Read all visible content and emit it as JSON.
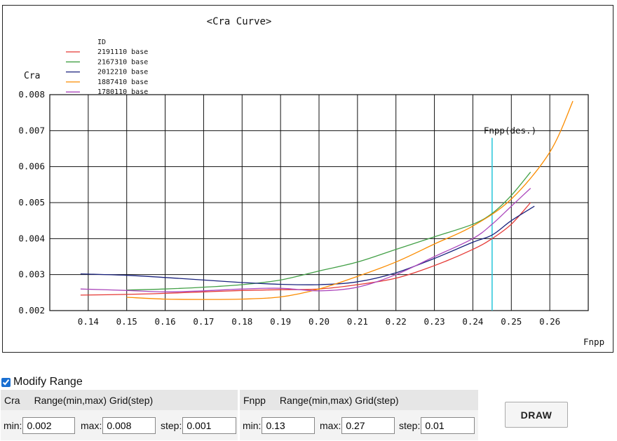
{
  "chart_data": {
    "type": "line",
    "title": "<Cra Curve>",
    "ylabel": "Cra",
    "xlabel": "Fnpp",
    "xlim": [
      0.13,
      0.27
    ],
    "ylim": [
      0.002,
      0.008
    ],
    "grid": true,
    "x_ticks": [
      "0.14",
      "0.15",
      "0.16",
      "0.17",
      "0.18",
      "0.19",
      "0.20",
      "0.21",
      "0.22",
      "0.23",
      "0.24",
      "0.25",
      "0.26"
    ],
    "y_ticks": [
      "0.002",
      "0.003",
      "0.004",
      "0.005",
      "0.006",
      "0.007",
      "0.008"
    ],
    "legend_title": "ID",
    "legend_position": "top-left",
    "series": [
      {
        "name": "2191110 base",
        "color": "#e53935",
        "points": [
          [
            0.138,
            0.00243
          ],
          [
            0.15,
            0.00245
          ],
          [
            0.16,
            0.00248
          ],
          [
            0.17,
            0.00252
          ],
          [
            0.18,
            0.00256
          ],
          [
            0.19,
            0.00258
          ],
          [
            0.2,
            0.0026
          ],
          [
            0.21,
            0.00272
          ],
          [
            0.22,
            0.0029
          ],
          [
            0.23,
            0.00325
          ],
          [
            0.24,
            0.0037
          ],
          [
            0.245,
            0.004
          ],
          [
            0.25,
            0.0044
          ],
          [
            0.255,
            0.005
          ]
        ]
      },
      {
        "name": "2167310 base",
        "color": "#43a047",
        "points": [
          [
            0.15,
            0.00257
          ],
          [
            0.16,
            0.0026
          ],
          [
            0.17,
            0.00265
          ],
          [
            0.18,
            0.00272
          ],
          [
            0.19,
            0.00285
          ],
          [
            0.2,
            0.0031
          ],
          [
            0.21,
            0.00335
          ],
          [
            0.22,
            0.0037
          ],
          [
            0.23,
            0.00405
          ],
          [
            0.24,
            0.0044
          ],
          [
            0.245,
            0.0047
          ],
          [
            0.25,
            0.0052
          ],
          [
            0.255,
            0.00585
          ]
        ]
      },
      {
        "name": "2012210 base",
        "color": "#1a237e",
        "points": [
          [
            0.138,
            0.00302
          ],
          [
            0.15,
            0.00298
          ],
          [
            0.16,
            0.00292
          ],
          [
            0.17,
            0.00285
          ],
          [
            0.18,
            0.00278
          ],
          [
            0.19,
            0.00273
          ],
          [
            0.2,
            0.00272
          ],
          [
            0.21,
            0.0028
          ],
          [
            0.22,
            0.00305
          ],
          [
            0.23,
            0.00345
          ],
          [
            0.24,
            0.0039
          ],
          [
            0.245,
            0.0041
          ],
          [
            0.25,
            0.0045
          ],
          [
            0.256,
            0.0049
          ]
        ]
      },
      {
        "name": "1887410 base",
        "color": "#fb8c00",
        "points": [
          [
            0.15,
            0.00237
          ],
          [
            0.16,
            0.00232
          ],
          [
            0.17,
            0.00231
          ],
          [
            0.18,
            0.00232
          ],
          [
            0.19,
            0.00238
          ],
          [
            0.2,
            0.0026
          ],
          [
            0.21,
            0.00295
          ],
          [
            0.22,
            0.00335
          ],
          [
            0.23,
            0.00385
          ],
          [
            0.24,
            0.00435
          ],
          [
            0.25,
            0.0051
          ],
          [
            0.26,
            0.0064
          ],
          [
            0.266,
            0.00782
          ]
        ]
      },
      {
        "name": "1780110 base",
        "color": "#ab47bc",
        "points": [
          [
            0.138,
            0.0026
          ],
          [
            0.15,
            0.00256
          ],
          [
            0.16,
            0.00252
          ],
          [
            0.17,
            0.00255
          ],
          [
            0.18,
            0.0026
          ],
          [
            0.19,
            0.00262
          ],
          [
            0.2,
            0.00255
          ],
          [
            0.21,
            0.00265
          ],
          [
            0.22,
            0.003
          ],
          [
            0.23,
            0.0035
          ],
          [
            0.24,
            0.004
          ],
          [
            0.245,
            0.0044
          ],
          [
            0.25,
            0.0049
          ],
          [
            0.255,
            0.0054
          ]
        ]
      }
    ],
    "annotations": [
      {
        "label": "Fnpp(des.)",
        "x": 0.245,
        "color": "#26c6da",
        "y_top": 0.0068
      }
    ]
  },
  "controls": {
    "modify_range_label": "Modify Range",
    "modify_range_checked": true,
    "cra_panel": {
      "name": "Cra",
      "heading": "Range(min,max) Grid(step)",
      "min_label": "min:",
      "min_value": "0.002",
      "max_label": "max:",
      "max_value": "0.008",
      "step_label": "step:",
      "step_value": "0.001"
    },
    "fnpp_panel": {
      "name": "Fnpp",
      "heading": "Range(min,max) Grid(step)",
      "min_label": "min:",
      "min_value": "0.13",
      "max_label": "max:",
      "max_value": "0.27",
      "step_label": "step:",
      "step_value": "0.01"
    },
    "draw_label": "DRAW"
  }
}
